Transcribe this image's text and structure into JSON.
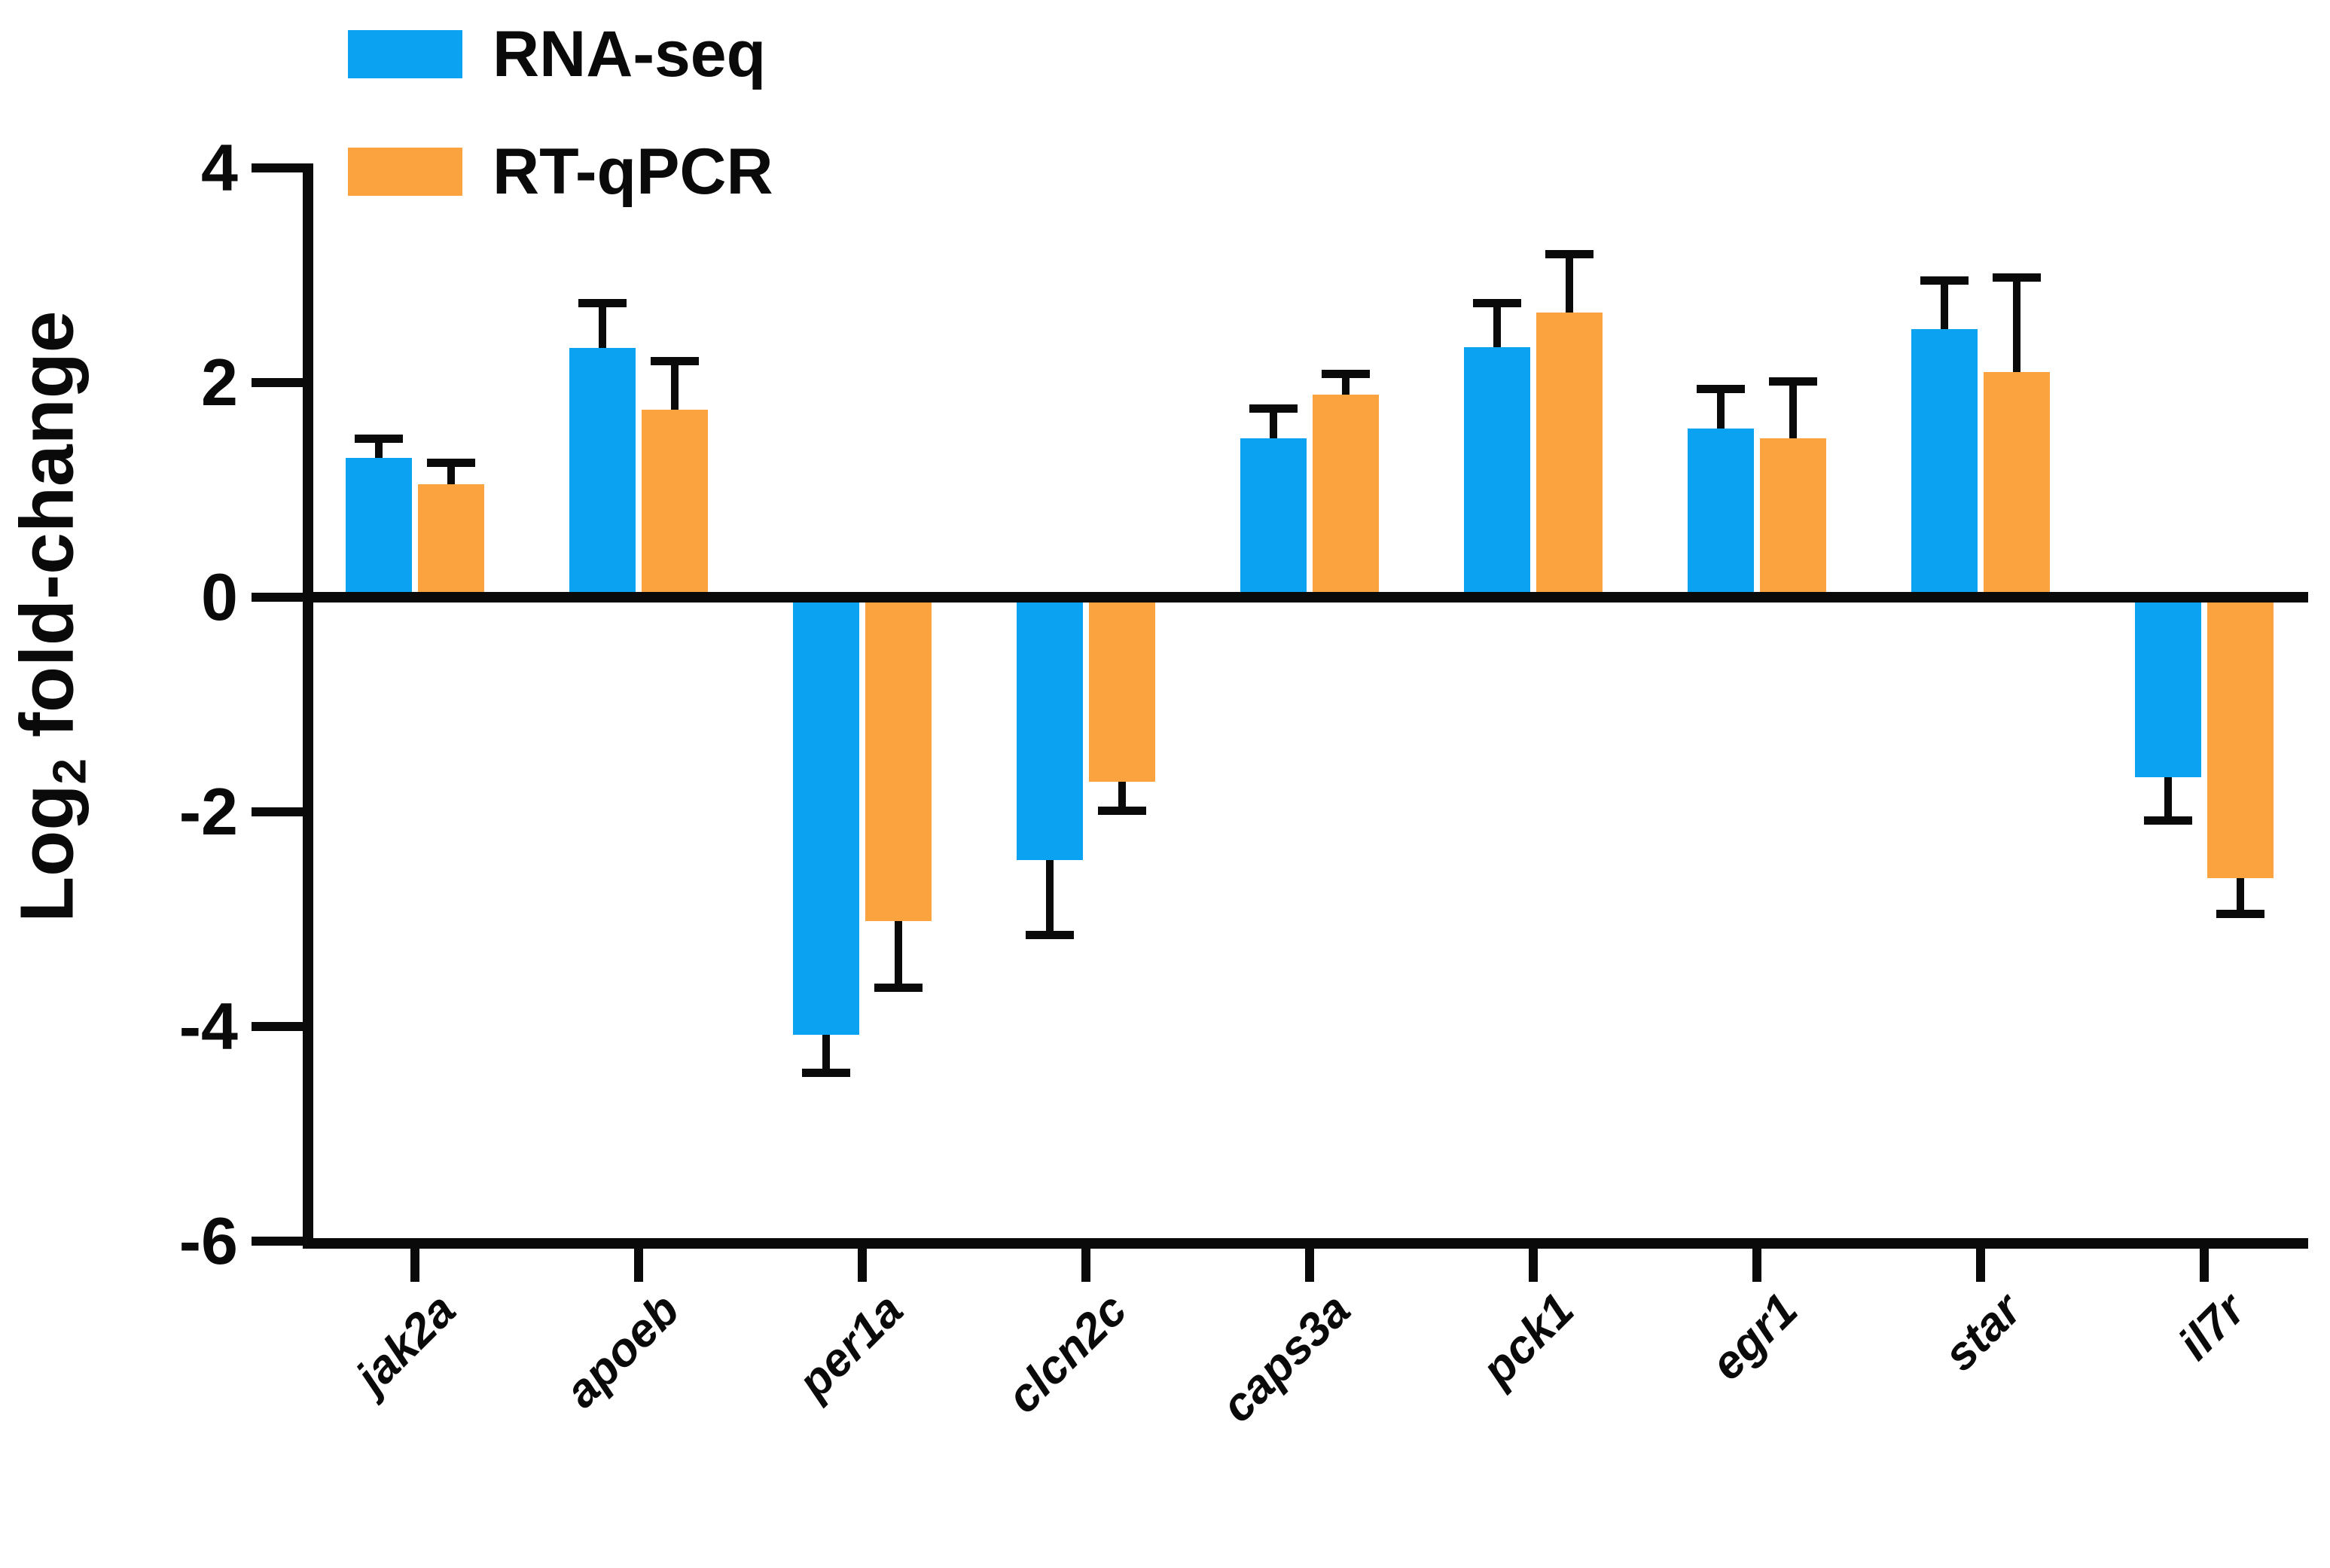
{
  "chart_data": {
    "type": "bar",
    "title": "",
    "y_axis_label": {
      "pre": "Log",
      "sub": "2",
      "post": " fold-change"
    },
    "categories": [
      "jak2a",
      "apoeb",
      "per1a",
      "clcn2c",
      "caps3a",
      "pck1",
      "egr1",
      "star",
      "il7r"
    ],
    "series": [
      {
        "name": "RNA-seq",
        "color": "#0ba2f2",
        "values": [
          1.3,
          2.32,
          -4.08,
          -2.45,
          1.48,
          2.33,
          1.57,
          2.5,
          -1.68
        ],
        "errors": [
          0.18,
          0.42,
          0.35,
          0.7,
          0.28,
          0.41,
          0.37,
          0.45,
          0.4
        ]
      },
      {
        "name": "RT-qPCR",
        "color": "#fba33f",
        "values": [
          1.05,
          1.75,
          -3.02,
          -1.72,
          1.89,
          2.65,
          1.48,
          2.1,
          -2.62
        ],
        "errors": [
          0.2,
          0.45,
          0.62,
          0.27,
          0.19,
          0.55,
          0.53,
          0.88,
          0.33
        ]
      }
    ],
    "yticks": [
      4,
      2,
      0,
      -2,
      -4,
      -6
    ],
    "ylim": [
      -6,
      4
    ],
    "error_bar_direction": "away-from-zero",
    "grid": false,
    "legend_position": "top-left-inside",
    "axis_color": "#0a0a0a",
    "background_color": "#ffffff"
  }
}
